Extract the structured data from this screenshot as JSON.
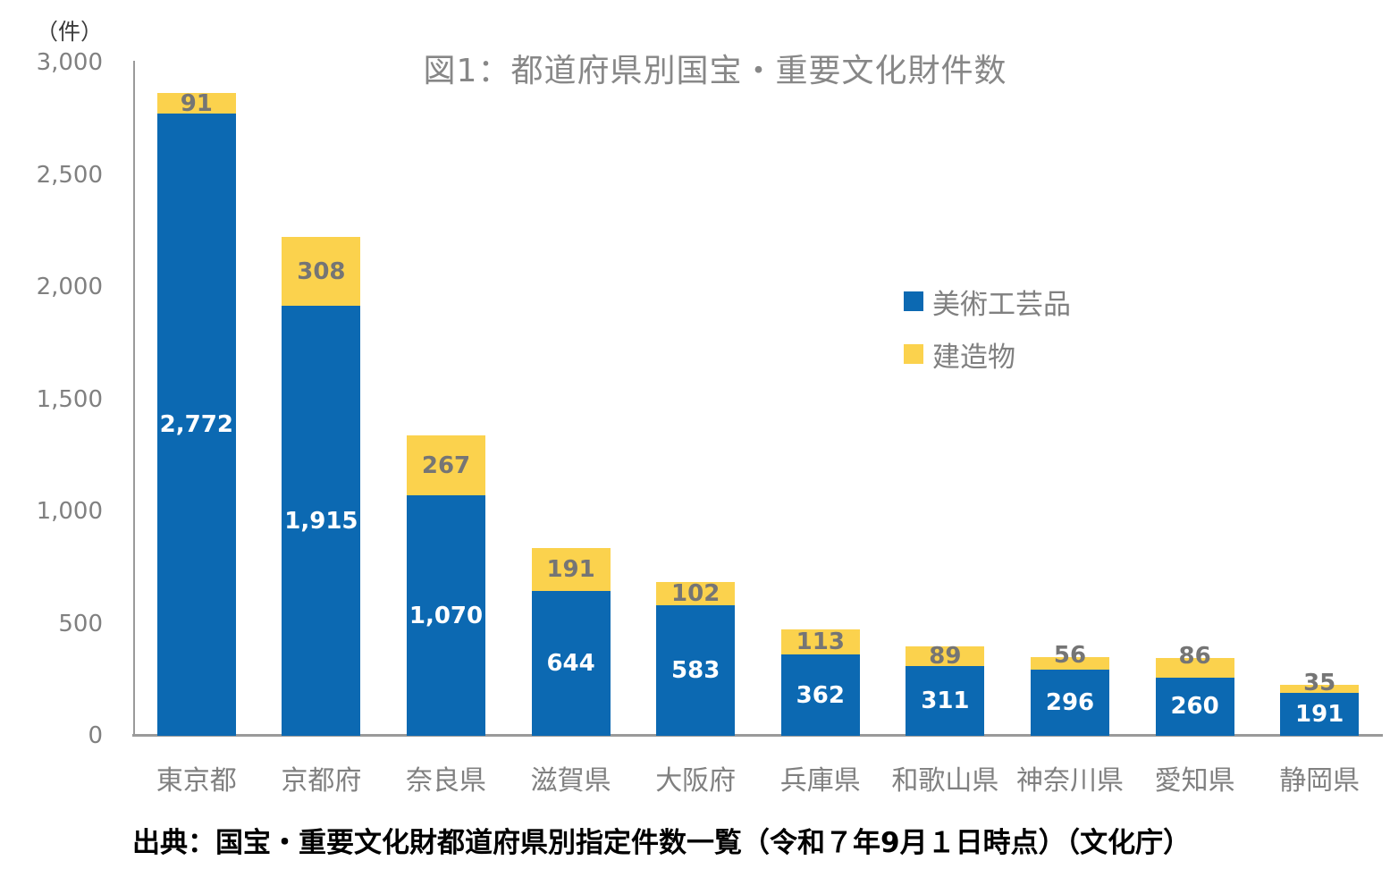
{
  "unit_label": "（件）",
  "title": "図1：都道府県別国宝・重要文化財件数",
  "source": "出典：国宝・重要文化財都道府県別指定件数一覧（令和７年9月１日時点）（文化庁）",
  "legend": {
    "items": [
      {
        "label": "美術工芸品",
        "color": "#0C69B2"
      },
      {
        "label": "建造物",
        "color": "#FBD24D"
      }
    ]
  },
  "colors": {
    "art_series_blue": "#0C69B2",
    "building_series_yellow": "#FBD24D",
    "axis_line_gray": "#9A9A9A",
    "tick_text_gray": "#808080",
    "title_gray": "#878787",
    "yellow_label_gray": "#757575",
    "blue_label_white": "#FFFFFF",
    "source_black": "#000000"
  },
  "chart_data": {
    "type": "bar",
    "stacked": true,
    "title": "図1：都道府県別国宝・重要文化財件数",
    "ylabel": "（件）",
    "xlabel": "",
    "ylim": [
      0,
      3000
    ],
    "grid": false,
    "legend_position": "right-inside",
    "categories": [
      "東京都",
      "京都府",
      "奈良県",
      "滋賀県",
      "大阪府",
      "兵庫県",
      "和歌山県",
      "神奈川県",
      "愛知県",
      "静岡県"
    ],
    "series": [
      {
        "name": "美術工芸品",
        "color": "#0C69B2",
        "label_color": "#FFFFFF",
        "values": [
          2772,
          1915,
          1070,
          644,
          583,
          362,
          311,
          296,
          260,
          191
        ],
        "labels": [
          "2,772",
          "1,915",
          "1,070",
          "644",
          "583",
          "362",
          "311",
          "296",
          "260",
          "191"
        ]
      },
      {
        "name": "建造物",
        "color": "#FBD24D",
        "label_color": "#757575",
        "values": [
          91,
          308,
          267,
          191,
          102,
          113,
          89,
          56,
          86,
          35
        ],
        "labels": [
          "91",
          "308",
          "267",
          "191",
          "102",
          "113",
          "89",
          "56",
          "86",
          "35"
        ]
      }
    ],
    "yticks": [
      {
        "value": 0,
        "label": "0"
      },
      {
        "value": 500,
        "label": "500"
      },
      {
        "value": 1000,
        "label": "1,000"
      },
      {
        "value": 1500,
        "label": "1,500"
      },
      {
        "value": 2000,
        "label": "2,000"
      },
      {
        "value": 2500,
        "label": "2,500"
      },
      {
        "value": 3000,
        "label": "3,000"
      }
    ]
  }
}
